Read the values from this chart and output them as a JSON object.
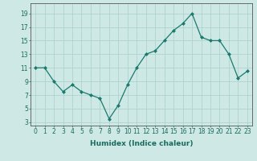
{
  "x": [
    0,
    1,
    2,
    3,
    4,
    5,
    6,
    7,
    8,
    9,
    10,
    11,
    12,
    13,
    14,
    15,
    16,
    17,
    18,
    19,
    20,
    21,
    22,
    23
  ],
  "y": [
    11,
    11,
    9,
    7.5,
    8.5,
    7.5,
    7,
    6.5,
    3.5,
    5.5,
    8.5,
    11,
    13,
    13.5,
    15,
    16.5,
    17.5,
    19,
    15.5,
    15,
    15,
    13,
    9.5,
    10.5
  ],
  "line_color": "#1a7a6e",
  "marker": "D",
  "marker_size": 2.0,
  "bg_color": "#cde8e5",
  "grid_color": "#aacfcc",
  "xlabel": "Humidex (Indice chaleur)",
  "xlim": [
    -0.5,
    23.5
  ],
  "ylim": [
    2.5,
    20.5
  ],
  "yticks": [
    3,
    5,
    7,
    9,
    11,
    13,
    15,
    17,
    19
  ],
  "xticks": [
    0,
    1,
    2,
    3,
    4,
    5,
    6,
    7,
    8,
    9,
    10,
    11,
    12,
    13,
    14,
    15,
    16,
    17,
    18,
    19,
    20,
    21,
    22,
    23
  ],
  "xtick_labels": [
    "0",
    "1",
    "2",
    "3",
    "4",
    "5",
    "6",
    "7",
    "8",
    "9",
    "10",
    "11",
    "12",
    "13",
    "14",
    "15",
    "16",
    "17",
    "18",
    "19",
    "20",
    "21",
    "22",
    "23"
  ],
  "text_color": "#1a6b5e",
  "axis_color": "#555555",
  "tick_fontsize": 5.5,
  "label_fontsize": 6.5
}
